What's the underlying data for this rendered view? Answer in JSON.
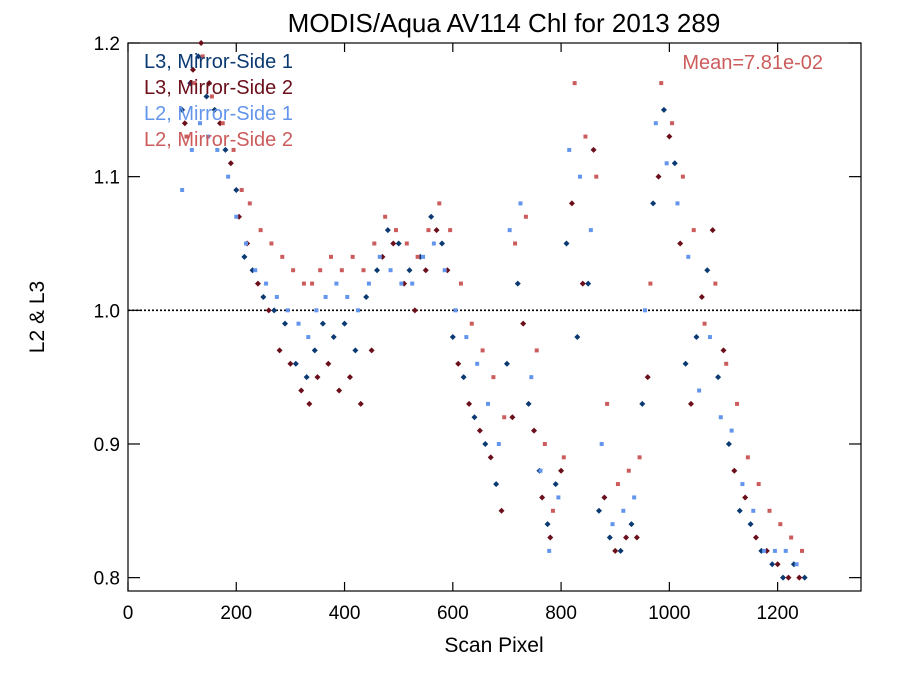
{
  "chart_data": {
    "type": "scatter",
    "title": "MODIS/Aqua AV114 Chl for 2013 289",
    "xlabel": "Scan Pixel",
    "ylabel": "L2 & L3",
    "xlim": [
      0,
      1354
    ],
    "ylim": [
      0.79,
      1.2
    ],
    "xticks": [
      0,
      200,
      400,
      600,
      800,
      1000,
      1200
    ],
    "yticks": [
      0.8,
      0.9,
      1.0,
      1.1,
      1.2
    ],
    "xtick_labels": [
      "0",
      "200",
      "400",
      "600",
      "800",
      "1000",
      "1200"
    ],
    "ytick_labels": [
      "0.8",
      "0.9",
      "1.0",
      "1.1",
      "1.2"
    ],
    "reference_line": 1.0,
    "grid": false,
    "legend_position": "top-left",
    "annotation": "Mean=7.81e-02",
    "series": [
      {
        "name": "L3, Mirror-Side 1",
        "color": "#0b3a73",
        "marker": "diamond",
        "x": [
          100,
          115,
          130,
          145,
          160,
          180,
          200,
          215,
          230,
          250,
          270,
          290,
          310,
          330,
          345,
          360,
          380,
          400,
          420,
          440,
          460,
          480,
          500,
          520,
          540,
          560,
          580,
          600,
          620,
          640,
          660,
          680,
          700,
          720,
          740,
          760,
          775,
          790,
          810,
          830,
          850,
          870,
          890,
          910,
          930,
          950,
          970,
          990,
          1010,
          1030,
          1050,
          1070,
          1090,
          1110,
          1130,
          1150,
          1170,
          1190,
          1210,
          1230,
          1250
        ],
        "y": [
          1.15,
          1.17,
          1.19,
          1.16,
          1.15,
          1.12,
          1.09,
          1.04,
          1.03,
          1.01,
          1.0,
          0.99,
          0.96,
          0.95,
          0.97,
          0.99,
          0.98,
          0.99,
          0.97,
          1.01,
          1.03,
          1.06,
          1.05,
          1.03,
          1.04,
          1.07,
          1.05,
          0.98,
          0.95,
          0.92,
          0.9,
          0.87,
          0.96,
          1.02,
          0.93,
          0.88,
          0.84,
          0.87,
          1.05,
          0.98,
          1.02,
          0.85,
          0.83,
          0.82,
          0.84,
          0.93,
          1.08,
          1.15,
          1.11,
          0.96,
          0.98,
          1.03,
          0.95,
          0.9,
          0.85,
          0.84,
          0.82,
          0.81,
          0.8,
          0.81,
          0.8
        ]
      },
      {
        "name": "L3, Mirror-Side 2",
        "color": "#6b0f1a",
        "marker": "diamond",
        "x": [
          105,
          120,
          135,
          150,
          170,
          190,
          205,
          220,
          240,
          260,
          280,
          300,
          320,
          335,
          350,
          370,
          390,
          410,
          430,
          450,
          470,
          490,
          510,
          530,
          550,
          570,
          590,
          610,
          630,
          650,
          670,
          690,
          710,
          730,
          750,
          765,
          780,
          800,
          820,
          840,
          860,
          880,
          900,
          920,
          940,
          960,
          980,
          1000,
          1020,
          1040,
          1060,
          1080,
          1100,
          1120,
          1140,
          1160,
          1180,
          1200,
          1220,
          1240
        ],
        "y": [
          1.14,
          1.18,
          1.2,
          1.17,
          1.14,
          1.11,
          1.07,
          1.05,
          1.02,
          1.0,
          0.97,
          0.96,
          0.94,
          0.93,
          0.95,
          0.96,
          0.94,
          0.95,
          0.93,
          0.97,
          1.04,
          1.05,
          1.02,
          1.0,
          1.03,
          1.06,
          1.03,
          0.96,
          0.93,
          0.91,
          0.89,
          0.85,
          0.92,
          0.99,
          0.91,
          0.86,
          0.83,
          0.88,
          1.08,
          1.02,
          1.12,
          0.86,
          0.82,
          0.83,
          0.83,
          0.95,
          1.1,
          1.13,
          1.05,
          0.93,
          1.01,
          1.06,
          0.97,
          0.88,
          0.86,
          0.83,
          0.82,
          0.81,
          0.8,
          0.8
        ]
      },
      {
        "name": "L2, Mirror-Side 1",
        "color": "#6495ed",
        "marker": "square",
        "x": [
          100,
          118,
          133,
          148,
          165,
          185,
          200,
          218,
          235,
          255,
          275,
          295,
          315,
          333,
          348,
          365,
          385,
          405,
          425,
          445,
          465,
          485,
          505,
          525,
          545,
          565,
          585,
          605,
          625,
          645,
          665,
          685,
          705,
          725,
          745,
          762,
          778,
          795,
          815,
          835,
          855,
          875,
          895,
          915,
          935,
          955,
          975,
          995,
          1015,
          1035,
          1055,
          1075,
          1095,
          1115,
          1135,
          1155,
          1175,
          1195,
          1215,
          1235
        ],
        "y": [
          1.09,
          1.12,
          1.14,
          1.13,
          1.12,
          1.1,
          1.07,
          1.05,
          1.03,
          1.02,
          1.01,
          1.0,
          0.99,
          0.98,
          1.0,
          1.01,
          1.02,
          1.01,
          1.0,
          1.02,
          1.04,
          1.03,
          1.02,
          1.02,
          1.04,
          1.05,
          1.03,
          1.0,
          0.98,
          0.96,
          0.93,
          0.9,
          1.06,
          1.08,
          0.95,
          0.88,
          0.82,
          0.86,
          1.12,
          1.1,
          1.06,
          0.9,
          0.84,
          0.85,
          0.86,
          1.0,
          1.14,
          1.11,
          1.08,
          1.04,
          0.94,
          0.98,
          0.92,
          0.91,
          0.87,
          0.85,
          0.82,
          0.82,
          0.82,
          0.81
        ]
      },
      {
        "name": "L2, Mirror-Side 2",
        "color": "#cc5c5c",
        "marker": "square",
        "x": [
          108,
          123,
          138,
          155,
          175,
          195,
          210,
          225,
          245,
          265,
          285,
          305,
          325,
          340,
          355,
          375,
          395,
          415,
          435,
          455,
          475,
          495,
          515,
          535,
          555,
          575,
          595,
          615,
          635,
          655,
          675,
          695,
          715,
          735,
          755,
          770,
          785,
          805,
          825,
          845,
          865,
          885,
          905,
          925,
          945,
          965,
          985,
          1005,
          1025,
          1045,
          1065,
          1085,
          1105,
          1125,
          1145,
          1165,
          1185,
          1205,
          1225,
          1245
        ],
        "y": [
          1.13,
          1.17,
          1.19,
          1.16,
          1.14,
          1.12,
          1.09,
          1.08,
          1.06,
          1.05,
          1.04,
          1.03,
          1.02,
          1.02,
          1.03,
          1.04,
          1.03,
          1.04,
          1.03,
          1.05,
          1.07,
          1.06,
          1.05,
          1.04,
          1.06,
          1.08,
          1.06,
          1.02,
          0.99,
          0.97,
          0.95,
          0.92,
          1.05,
          1.07,
          0.97,
          0.9,
          0.85,
          0.89,
          1.17,
          1.13,
          1.1,
          0.93,
          0.87,
          0.88,
          0.89,
          1.02,
          1.17,
          1.14,
          1.1,
          1.06,
          0.99,
          1.02,
          0.96,
          0.93,
          0.89,
          0.87,
          0.85,
          0.84,
          0.83,
          0.82
        ]
      }
    ]
  }
}
